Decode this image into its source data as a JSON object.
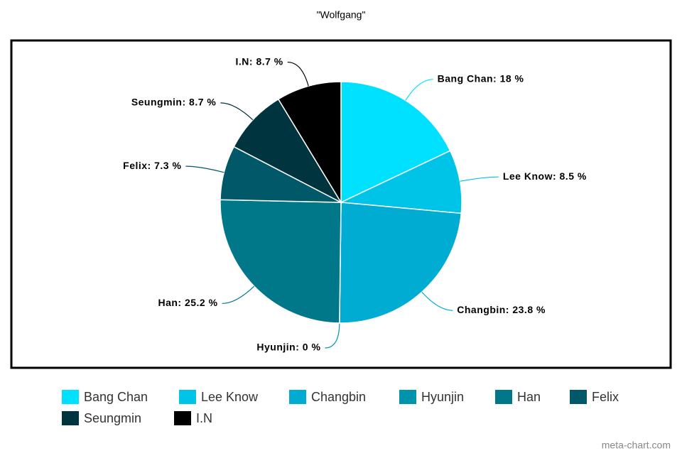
{
  "chart_data": {
    "type": "pie",
    "title": "\"Wolfgang\"",
    "categories": [
      "Bang Chan",
      "Lee Know",
      "Changbin",
      "Hyunjin",
      "Han",
      "Felix",
      "Seungmin",
      "I.N"
    ],
    "values": [
      18,
      8.5,
      23.8,
      0,
      25.2,
      7.3,
      8.7,
      8.7
    ],
    "value_labels": [
      "Bang Chan: 18 %",
      "Lee Know: 8.5 %",
      "Changbin: 23.8 %",
      "Hyunjin: 0 %",
      "Han: 25.2 %",
      "Felix: 7.3 %",
      "Seungmin: 8.7 %",
      "I.N: 8.7 %"
    ],
    "colors": [
      "#00e1ff",
      "#00c3e8",
      "#00acd2",
      "#0094ac",
      "#00788a",
      "#005868",
      "#00343e",
      "#000000"
    ],
    "watermark": "meta-chart.com"
  }
}
